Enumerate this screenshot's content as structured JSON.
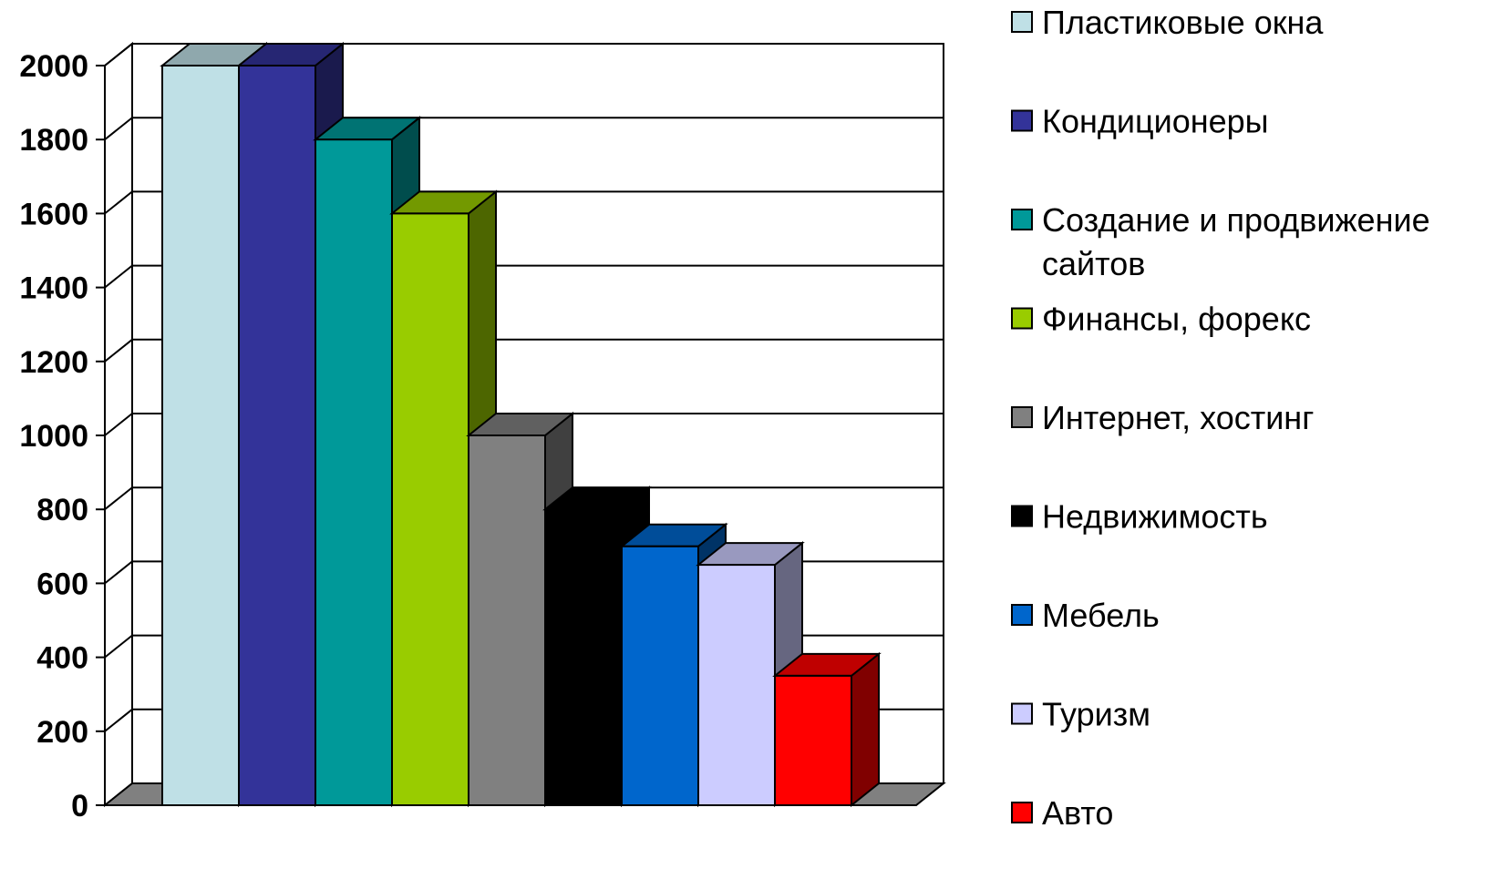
{
  "chart_data": {
    "type": "bar",
    "categories": [
      "Пластиковые окна",
      "Кондиционеры",
      "Создание и продвижение сайтов",
      "Финансы, форекс",
      "Интернет, хостинг",
      "Недвижимость",
      "Мебель",
      "Туризм",
      "Авто"
    ],
    "legend_lines": [
      [
        "Пластиковые окна"
      ],
      [
        "Кондиционеры"
      ],
      [
        "Создание и продвижение",
        "сайтов"
      ],
      [
        "Финансы, форекс"
      ],
      [
        "Интернет, хостинг"
      ],
      [
        "Недвижимость"
      ],
      [
        "Мебель"
      ],
      [
        "Туризм"
      ],
      [
        "Авто"
      ]
    ],
    "values": [
      2000,
      2000,
      1800,
      1600,
      1000,
      800,
      700,
      650,
      350
    ],
    "colors": [
      "#BFE0E6",
      "#333399",
      "#009999",
      "#99CC00",
      "#808080",
      "#000000",
      "#0066CC",
      "#CCCCFF",
      "#FF0000"
    ],
    "ylim": [
      0,
      2000
    ],
    "yticks": [
      "0",
      "200",
      "400",
      "600",
      "800",
      "1000",
      "1200",
      "1400",
      "1600",
      "1800",
      "2000"
    ],
    "grid": true,
    "legend_position": "right",
    "three_d": true
  }
}
